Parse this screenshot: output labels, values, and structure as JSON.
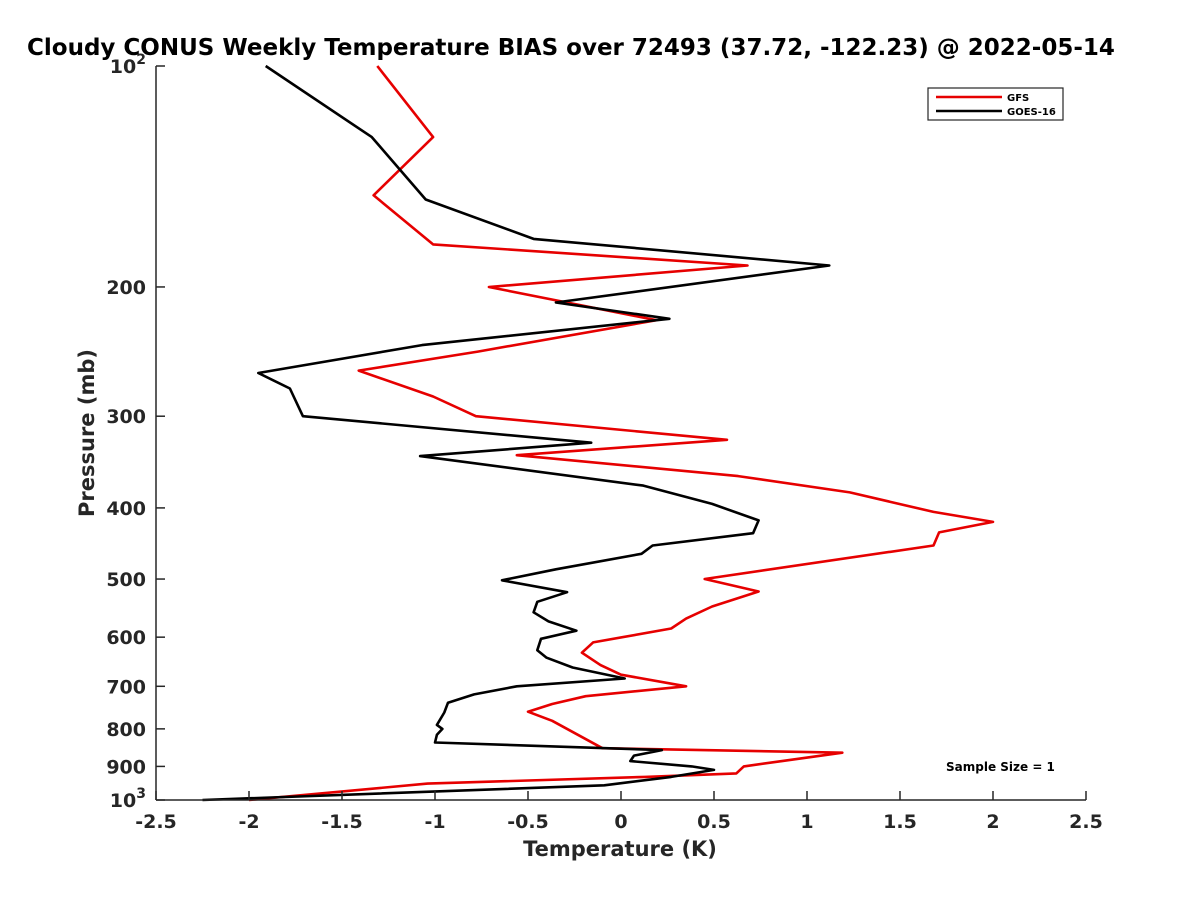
{
  "chart_data": {
    "type": "line",
    "title": "Cloudy CONUS Weekly Temperature BIAS over 72493 (37.72, -122.23) @ 2022-05-14",
    "xlabel": "Temperature (K)",
    "ylabel": "Pressure (mb)",
    "xlim": [
      -2.5,
      2.5
    ],
    "ylim": [
      100,
      1000
    ],
    "y_scale": "log",
    "y_reversed": true,
    "x_ticks": [
      "-2.5",
      "-2",
      "-1.5",
      "-1",
      "-0.5",
      "0",
      "0.5",
      "1",
      "1.5",
      "2",
      "2.5"
    ],
    "x_tick_values": [
      -2.5,
      -2,
      -1.5,
      -1,
      -0.5,
      0,
      0.5,
      1,
      1.5,
      2,
      2.5
    ],
    "y_ticks": [
      {
        "value": 100,
        "base": "10",
        "exp": "2"
      },
      {
        "value": 200,
        "label": "200"
      },
      {
        "value": 300,
        "label": "300"
      },
      {
        "value": 400,
        "label": "400"
      },
      {
        "value": 500,
        "label": "500"
      },
      {
        "value": 600,
        "label": "600"
      },
      {
        "value": 700,
        "label": "700"
      },
      {
        "value": 800,
        "label": "800"
      },
      {
        "value": 900,
        "label": "900"
      },
      {
        "value": 1000,
        "base": "10",
        "exp": "3"
      }
    ],
    "grid": false,
    "legend_position": "top-right",
    "annotation": "Sample Size = 1",
    "series": [
      {
        "name": "GFS",
        "color": "#e60000",
        "points": [
          [
            -1.31,
            100
          ],
          [
            -1.01,
            125
          ],
          [
            -1.33,
            150
          ],
          [
            -1.01,
            175
          ],
          [
            0.68,
            187
          ],
          [
            -0.71,
            200
          ],
          [
            0.19,
            222
          ],
          [
            -0.77,
            245
          ],
          [
            -1.41,
            260
          ],
          [
            -1.01,
            282
          ],
          [
            -0.78,
            300
          ],
          [
            0.57,
            323
          ],
          [
            -0.56,
            339
          ],
          [
            0.63,
            362
          ],
          [
            1.23,
            381
          ],
          [
            1.68,
            405
          ],
          [
            2.0,
            418
          ],
          [
            1.71,
            432
          ],
          [
            1.68,
            450
          ],
          [
            0.45,
            500
          ],
          [
            0.74,
            520
          ],
          [
            0.49,
            545
          ],
          [
            0.35,
            566
          ],
          [
            0.27,
            584
          ],
          [
            -0.15,
            610
          ],
          [
            -0.21,
            630
          ],
          [
            -0.11,
            655
          ],
          [
            0.0,
            675
          ],
          [
            0.35,
            700
          ],
          [
            -0.19,
            722
          ],
          [
            -0.37,
            740
          ],
          [
            -0.5,
            758
          ],
          [
            -0.37,
            780
          ],
          [
            -0.1,
            850
          ],
          [
            1.19,
            862
          ],
          [
            0.66,
            900
          ],
          [
            0.62,
            920
          ],
          [
            0.13,
            930
          ],
          [
            -1.04,
            950
          ],
          [
            -2.0,
            1000
          ]
        ]
      },
      {
        "name": "GOES-16",
        "color": "#000000",
        "points": [
          [
            -1.91,
            100
          ],
          [
            -1.34,
            125
          ],
          [
            -1.05,
            152
          ],
          [
            -0.47,
            172
          ],
          [
            1.12,
            187
          ],
          [
            -0.35,
            210
          ],
          [
            0.26,
            221
          ],
          [
            -1.07,
            240
          ],
          [
            -1.95,
            262
          ],
          [
            -1.78,
            275
          ],
          [
            -1.71,
            300
          ],
          [
            -0.16,
            326
          ],
          [
            -1.08,
            340
          ],
          [
            0.12,
            373
          ],
          [
            0.49,
            395
          ],
          [
            0.74,
            416
          ],
          [
            0.71,
            433
          ],
          [
            0.17,
            450
          ],
          [
            0.11,
            462
          ],
          [
            -0.35,
            485
          ],
          [
            -0.64,
            502
          ],
          [
            -0.29,
            521
          ],
          [
            -0.45,
            537
          ],
          [
            -0.47,
            555
          ],
          [
            -0.39,
            571
          ],
          [
            -0.24,
            588
          ],
          [
            -0.43,
            603
          ],
          [
            -0.45,
            625
          ],
          [
            -0.4,
            640
          ],
          [
            -0.26,
            660
          ],
          [
            0.02,
            683
          ],
          [
            -0.56,
            700
          ],
          [
            -0.79,
            718
          ],
          [
            -0.93,
            737
          ],
          [
            -0.95,
            760
          ],
          [
            -0.99,
            790
          ],
          [
            -0.96,
            800
          ],
          [
            -0.99,
            815
          ],
          [
            -1.0,
            835
          ],
          [
            0.22,
            855
          ],
          [
            0.07,
            870
          ],
          [
            0.05,
            885
          ],
          [
            0.38,
            900
          ],
          [
            0.5,
            910
          ],
          [
            0.27,
            930
          ],
          [
            -0.09,
            955
          ],
          [
            -2.25,
            1000
          ]
        ]
      }
    ]
  }
}
